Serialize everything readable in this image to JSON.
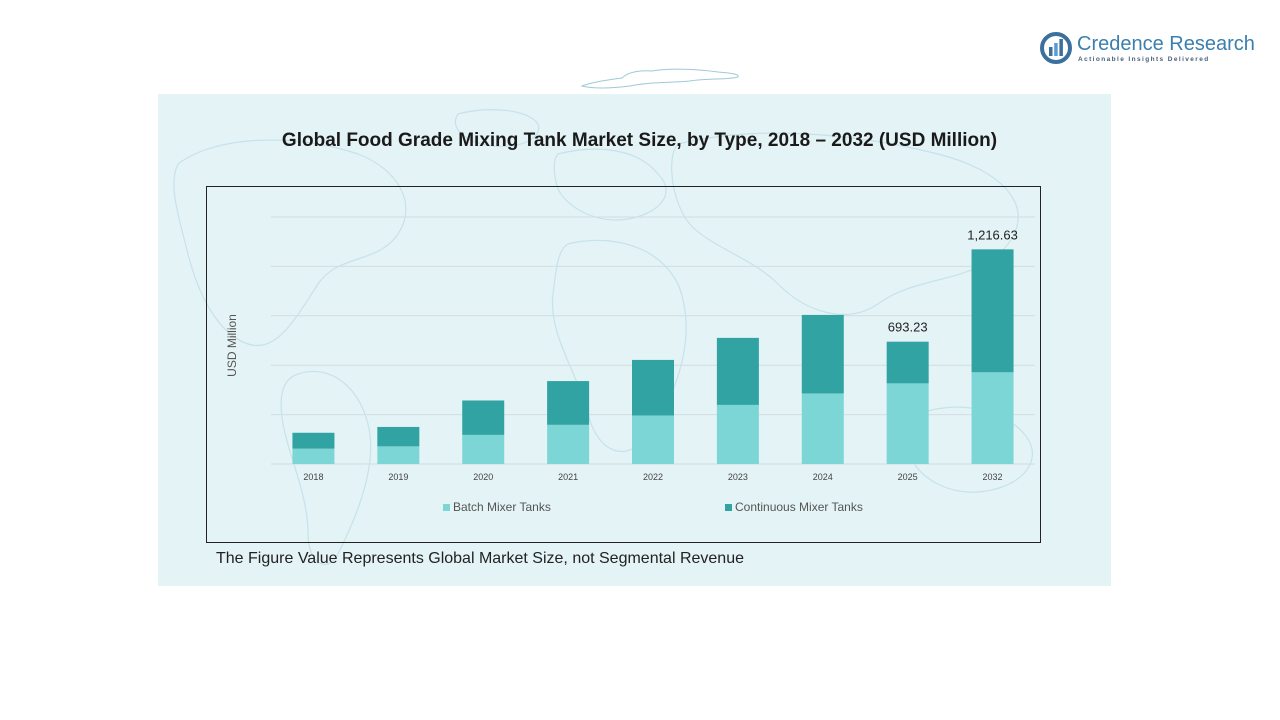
{
  "branding": {
    "name": "Credence Research",
    "tagline": "Actionable Insights Delivered"
  },
  "footnote": "The Figure Value Represents Global Market Size, not Segmental Revenue",
  "colors": {
    "batch": "#7dd6d6",
    "continuous": "#31a3a3",
    "panel_bg": "#e4f3f6",
    "brand": "#3b7fae"
  },
  "chart_data": {
    "type": "bar",
    "stacked": true,
    "title": "Global Food Grade Mixing Tank Market Size, by Type, 2018 – 2032 (USD Million)",
    "xlabel": "",
    "ylabel": "USD Million",
    "categories": [
      "2018",
      "2019",
      "2020",
      "2021",
      "2022",
      "2023",
      "2024",
      "2025",
      "2032"
    ],
    "ylim": [
      0,
      1400
    ],
    "gridlines": [
      0,
      280,
      560,
      840,
      1120,
      1400
    ],
    "grid": true,
    "legend_position": "bottom",
    "series": [
      {
        "name": "Batch Mixer Tanks",
        "color": "#7dd6d6",
        "values": [
          87,
          100,
          165,
          222,
          275,
          335,
          400,
          457,
          520
        ]
      },
      {
        "name": "Continuous Mixer Tanks",
        "color": "#31a3a3",
        "values": [
          90,
          110,
          195,
          248,
          315,
          380,
          445,
          236.23,
          696.63
        ]
      }
    ],
    "data_labels": [
      {
        "category": "2025",
        "text": "693.23"
      },
      {
        "category": "2032",
        "text": "1,216.63"
      }
    ]
  }
}
